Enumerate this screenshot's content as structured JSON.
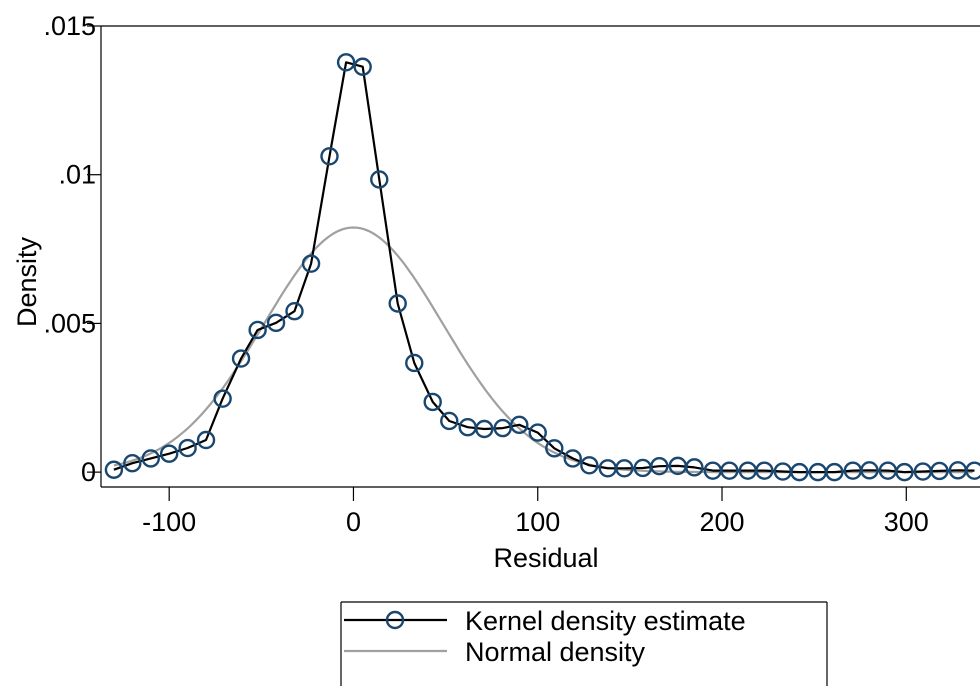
{
  "chart_data": {
    "type": "line",
    "xlabel": "Residual",
    "ylabel": "Density",
    "xlim": [
      -137,
      340
    ],
    "ylim": [
      -0.0005,
      0.015
    ],
    "x_ticks": [
      -100,
      0,
      100,
      200,
      300
    ],
    "x_tick_labels": [
      "-100",
      "0",
      "100",
      "200",
      "300"
    ],
    "y_ticks": [
      0,
      0.005,
      0.01,
      0.015
    ],
    "y_tick_labels": [
      "0",
      ".005",
      ".01",
      ".015"
    ],
    "grid": false,
    "legend_position": "bottom-center",
    "series": [
      {
        "name": "Kernel density estimate",
        "style": "line-with-hollow-circles",
        "color": "#000000",
        "marker_color": "#1a476f",
        "x": [
          -130,
          -120,
          -110,
          -100,
          -90,
          -80,
          -71,
          -61,
          -52,
          -42,
          -32,
          -23,
          -13,
          -4,
          5,
          14,
          24,
          33,
          43,
          52,
          62,
          71,
          81,
          90,
          100,
          109,
          119,
          128,
          138,
          147,
          157,
          166,
          176,
          185,
          195,
          204,
          214,
          223,
          233,
          242,
          252,
          261,
          271,
          280,
          290,
          299,
          309,
          318,
          328,
          337
        ],
        "y": [
          8e-05,
          0.0003,
          0.00046,
          0.00062,
          0.00081,
          0.00108,
          0.00247,
          0.00382,
          0.00478,
          0.00502,
          0.00541,
          0.00701,
          0.01062,
          0.01378,
          0.01363,
          0.00984,
          0.00567,
          0.00367,
          0.00236,
          0.00172,
          0.00151,
          0.00145,
          0.00148,
          0.00159,
          0.00133,
          0.0008,
          0.00046,
          0.00023,
          0.00013,
          0.00013,
          0.00014,
          0.0002,
          0.00021,
          0.00016,
          5e-05,
          5e-05,
          5e-05,
          5e-05,
          2e-05,
          0.0,
          0.0,
          0.0,
          5e-05,
          6e-05,
          5e-05,
          0.0,
          2e-05,
          4e-05,
          6e-05,
          5e-05
        ]
      },
      {
        "name": "Normal density",
        "style": "line",
        "color": "#a0a0a0",
        "mean": 0,
        "sd": 48.5
      }
    ]
  }
}
